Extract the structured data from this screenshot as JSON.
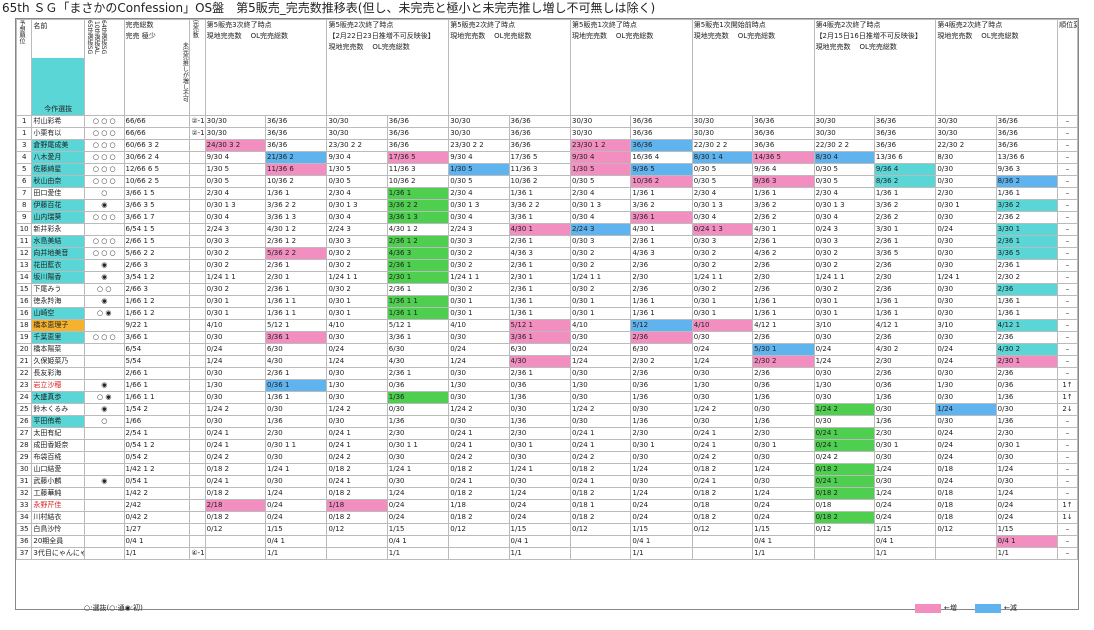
{
  "title": "65th ＳＧ「まさかのConfession」OS盤　第5販売_完売数推移表(但し、未完売と極小と未完売推し増し不可無しは除く)",
  "header": {
    "col_rank": "予想順位",
    "col_name": "名前",
    "col_flags": [
      "65th選抜SG",
      "10th選抜AL",
      "64th選抜SG"
    ],
    "total": "完売総数",
    "kanbai": "完売",
    "gokusho": "極少",
    "mikan": "未完売推しが増し不可",
    "kansoku": "完売数",
    "current_label": "今作選抜",
    "sections": [
      {
        "title": "第5販売3次終了時点",
        "sub": ""
      },
      {
        "title": "第5販売2次終了時点",
        "sub": "【2月22日23日推増不可反映後】"
      },
      {
        "title": "第5販売2次終了時点",
        "sub": ""
      },
      {
        "title": "第5販売1次終了時点",
        "sub": ""
      },
      {
        "title": "第5販売1次開始前時点",
        "sub": ""
      },
      {
        "title": "第4販売2次終了時点",
        "sub": "【2月15日16日推増不可反映後】"
      },
      {
        "title": "第4販売2次終了時点",
        "sub": ""
      }
    ],
    "sub_a": "現地完売数",
    "sub_b": "OL完売総数",
    "rank_change": "順位変動"
  },
  "rows": [
    {
      "no": "1",
      "name": "村山彩希",
      "f": "○ ○ ○",
      "t": "66/66",
      "x": "②-1",
      "s": [
        "30/30",
        "36/36",
        "30/30",
        "36/36",
        "30/30",
        "36/36",
        "30/30",
        "36/36",
        "30/30",
        "36/36",
        "30/30",
        "36/36",
        "30/30",
        "36/36"
      ],
      "ch": "–"
    },
    {
      "no": "1",
      "name": "小栗有以",
      "f": "○ ○ ○",
      "t": "66/66",
      "x": "②-1",
      "s": [
        "30/30",
        "36/36",
        "30/30",
        "36/36",
        "30/30",
        "36/36",
        "30/30",
        "36/36",
        "30/30",
        "36/36",
        "30/30",
        "36/36",
        "30/30",
        "36/36"
      ],
      "ch": "–"
    },
    {
      "no": "3",
      "name": "倉野尾成美",
      "f": "○ ○ ○",
      "t": "60/66  3  2",
      "x": "",
      "s": [
        "24/30  3  2",
        "36/36",
        "23/30  2  2",
        "36/36",
        "23/30  2  2",
        "36/36",
        "23/30  1  2",
        "36/36",
        "22/30  2  2",
        "36/36",
        "22/30  2  2",
        "36/36",
        "22/30  2",
        "36/36"
      ],
      "ch": "–"
    },
    {
      "no": "4",
      "name": "八木愛月",
      "f": "○ ○ ○",
      "t": "30/66  2  4",
      "x": "",
      "s": [
        "9/30  4",
        "21/36  2",
        "9/30  4",
        "17/36  5",
        "9/30  4",
        "17/36  5",
        "9/30  4",
        "16/36  4",
        "8/30  1  4",
        "14/36  5",
        "8/30  4",
        "13/36  6",
        "8/30",
        "13/36  6"
      ],
      "ch": "–"
    },
    {
      "no": "5",
      "name": "佐藤綺星",
      "f": "○ ○ ○",
      "t": "12/66  6  5",
      "x": "",
      "s": [
        "1/30  5",
        "11/36  6",
        "1/30  5",
        "11/36  3",
        "1/30  5",
        "11/36  3",
        "1/30  5",
        "9/36  5",
        "0/30  5",
        "9/36  4",
        "0/30  5",
        "9/36  4",
        "0/30",
        "9/36  3"
      ],
      "ch": "–"
    },
    {
      "no": "6",
      "name": "秋山由奈",
      "f": "○ ○ ○",
      "t": "10/66  2  5",
      "x": "",
      "s": [
        "0/30  5",
        "10/36  2",
        "0/30  5",
        "10/36  2",
        "0/30  5",
        "10/36  2",
        "0/30  5",
        "10/36  2",
        "0/30  5",
        "9/36  3",
        "0/30  5",
        "8/36  2",
        "0/30",
        "8/36  2"
      ],
      "ch": "–"
    },
    {
      "no": "7",
      "name": "田口愛佳",
      "f": "○",
      "t": "3/66  1  5",
      "x": "",
      "s": [
        "2/30  4",
        "1/36  1",
        "2/30  4",
        "1/36  1",
        "2/30  4",
        "1/36  1",
        "2/30  4",
        "1/36  1",
        "2/30  4",
        "1/36  1",
        "2/30  4",
        "1/36  1",
        "2/30",
        "1/36  1"
      ],
      "ch": "–"
    },
    {
      "no": "8",
      "name": "伊藤百花",
      "f": "◉",
      "t": "3/66  3  5",
      "x": "",
      "s": [
        "0/30  1  3",
        "3/36  2  2",
        "0/30  1  3",
        "3/36  2  2",
        "0/30  1  3",
        "3/36  2  2",
        "0/30  1  3",
        "3/36  2",
        "0/30  1  3",
        "3/36  2",
        "0/30  1  3",
        "3/36  2",
        "0/30  1",
        "3/36  2"
      ],
      "ch": "–"
    },
    {
      "no": "9",
      "name": "山内瑞葵",
      "f": "○ ○ ○",
      "t": "3/66  1  7",
      "x": "",
      "s": [
        "0/30  4",
        "3/36  1  3",
        "0/30  4",
        "3/36  1  3",
        "0/30  4",
        "3/36  1",
        "0/30  4",
        "3/36  1",
        "0/30  4",
        "2/36  2",
        "0/30  4",
        "2/36  2",
        "0/30",
        "2/36  2"
      ],
      "ch": "–"
    },
    {
      "no": "10",
      "name": "新井彩永",
      "f": "",
      "t": "6/54  1  5",
      "x": "",
      "s": [
        "2/24  3",
        "4/30  1  2",
        "2/24  3",
        "4/30  1  2",
        "2/24  3",
        "4/30  1",
        "2/24  3",
        "4/30  1",
        "0/24  1  3",
        "4/30  1",
        "0/24  3",
        "3/30  1",
        "0/24",
        "3/30  1"
      ],
      "ch": "–"
    },
    {
      "no": "11",
      "name": "水島美結",
      "f": "○ ○ ○",
      "t": "2/66  1  5",
      "x": "",
      "s": [
        "0/30  3",
        "2/36  1  2",
        "0/30  3",
        "2/36  1  2",
        "0/30  3",
        "2/36  1",
        "0/30  3",
        "2/36  1",
        "0/30  3",
        "2/36  1",
        "0/30  3",
        "2/36  1",
        "0/30",
        "2/36  1"
      ],
      "ch": "–"
    },
    {
      "no": "12",
      "name": "向井地美音",
      "f": "○ ○ ○",
      "t": "5/66  2  2",
      "x": "",
      "s": [
        "0/30  2",
        "5/36  2  2",
        "0/30  2",
        "4/36  3",
        "0/30  2",
        "4/36  3",
        "0/30  2",
        "4/36  3",
        "0/30  2",
        "4/36  2",
        "0/30  2",
        "3/36  5",
        "0/30",
        "3/36  5"
      ],
      "ch": "–"
    },
    {
      "no": "13",
      "name": "花田藍衣",
      "f": "◉",
      "t": "2/66  3",
      "x": "",
      "s": [
        "0/30  2",
        "2/36  1",
        "0/30  2",
        "2/36  1",
        "0/30  2",
        "2/36  1",
        "0/30  2",
        "2/36",
        "0/30  2",
        "2/36",
        "0/30  2",
        "2/36",
        "0/30",
        "2/36  1"
      ],
      "ch": "–"
    },
    {
      "no": "14",
      "name": "坂川陽香",
      "f": "◉",
      "t": "3/54  1  2",
      "x": "",
      "s": [
        "1/24  1  1",
        "2/30  1",
        "1/24  1  1",
        "2/30  1",
        "1/24  1  1",
        "2/30  1",
        "1/24  1  1",
        "2/30",
        "1/24  1  1",
        "2/30",
        "1/24  1  1",
        "2/30",
        "1/24  1",
        "2/30  2"
      ],
      "ch": "–"
    },
    {
      "no": "15",
      "name": "下尾みう",
      "f": "○ ○",
      "t": "2/66  3",
      "x": "",
      "s": [
        "0/30  2",
        "2/36  1",
        "0/30  2",
        "2/36  1",
        "0/30  2",
        "2/36  1",
        "0/30  2",
        "2/36",
        "0/30  2",
        "2/36",
        "0/30  2",
        "2/36",
        "0/30",
        "2/36"
      ],
      "ch": "–"
    },
    {
      "no": "16",
      "name": "徳永羚海",
      "f": "◉",
      "t": "1/66  1  2",
      "x": "",
      "s": [
        "0/30  1",
        "1/36  1  1",
        "0/30  1",
        "1/36  1  1",
        "0/30  1",
        "1/36  1",
        "0/30  1",
        "1/36  1",
        "0/30  1",
        "1/36  1",
        "0/30  1",
        "1/36  1",
        "0/30",
        "1/36  1"
      ],
      "ch": "–"
    },
    {
      "no": "16",
      "name": "山崎空",
      "f": "○ ◉",
      "t": "1/66  1  2",
      "x": "",
      "s": [
        "0/30  1",
        "1/36  1  1",
        "0/30  1",
        "1/36  1  1",
        "0/30  1",
        "1/36  1",
        "0/30  1",
        "1/36  1",
        "0/30  1",
        "1/36  1",
        "0/30  1",
        "1/36  1",
        "0/30",
        "1/36  1"
      ],
      "ch": "–"
    },
    {
      "no": "18",
      "name": "橋本恵理子",
      "f": "",
      "t": "9/22  1",
      "x": "",
      "s": [
        "4/10",
        "5/12  1",
        "4/10",
        "5/12  1",
        "4/10",
        "5/12  1",
        "4/10",
        "5/12",
        "4/10",
        "4/12  1",
        "3/10",
        "4/12  1",
        "3/10",
        "4/12  1"
      ],
      "ch": "–"
    },
    {
      "no": "19",
      "name": "千葉恵里",
      "f": "○ ○ ○",
      "t": "3/66  1",
      "x": "",
      "s": [
        "0/30",
        "3/36  1",
        "0/30",
        "3/36  1",
        "0/30",
        "3/36  1",
        "0/30",
        "2/36",
        "0/30",
        "2/36",
        "0/30",
        "2/36",
        "0/30",
        "2/36"
      ],
      "ch": "–"
    },
    {
      "no": "20",
      "name": "橋本陽菜",
      "f": "",
      "t": "6/54",
      "x": "",
      "s": [
        "0/24",
        "6/30",
        "0/24",
        "6/30",
        "0/24",
        "6/30",
        "0/24",
        "6/30",
        "0/24",
        "5/30  1",
        "0/24",
        "4/30  2",
        "0/24",
        "4/30  2"
      ],
      "ch": "–"
    },
    {
      "no": "21",
      "name": "久保姫菜乃",
      "f": "",
      "t": "5/54",
      "x": "",
      "s": [
        "1/24",
        "4/30",
        "1/24",
        "4/30",
        "1/24",
        "4/30",
        "1/24",
        "2/30  2",
        "1/24",
        "2/30  2",
        "1/24",
        "2/30",
        "0/24",
        "2/30  1"
      ],
      "ch": "–"
    },
    {
      "no": "22",
      "name": "長友彩海",
      "f": "",
      "t": "2/66  1",
      "x": "",
      "s": [
        "0/30",
        "2/36  1",
        "0/30",
        "2/36  1",
        "0/30",
        "2/36  1",
        "0/30",
        "2/36",
        "0/30",
        "2/36",
        "0/30",
        "2/36",
        "0/30",
        "2/36"
      ],
      "ch": "–"
    },
    {
      "no": "23",
      "name": "岩立沙穂",
      "f": "◉",
      "t": "1/66  1",
      "x": "",
      "s": [
        "1/30",
        "0/36  1",
        "1/30",
        "0/36",
        "1/30",
        "0/36",
        "1/30",
        "0/36",
        "1/30",
        "0/36",
        "1/30",
        "0/36",
        "1/30",
        "0/36"
      ],
      "ch": "1↑"
    },
    {
      "no": "24",
      "name": "大盛真歩",
      "f": "○ ◉",
      "t": "1/66  1  1",
      "x": "",
      "s": [
        "0/30",
        "1/36  1",
        "0/30",
        "1/36",
        "0/30",
        "1/36",
        "0/30",
        "1/36",
        "0/30",
        "1/36",
        "0/30",
        "1/36",
        "0/30",
        "1/36"
      ],
      "ch": "1↑"
    },
    {
      "no": "25",
      "name": "鈴木くるみ",
      "f": "◉",
      "t": "1/54  2",
      "x": "",
      "s": [
        "1/24  2",
        "0/30",
        "1/24  2",
        "0/30",
        "1/24  2",
        "0/30",
        "1/24  2",
        "0/30",
        "1/24  2",
        "0/30",
        "1/24  2",
        "0/30",
        "1/24",
        "0/30"
      ],
      "ch": "2↓"
    },
    {
      "no": "26",
      "name": "平田侑希",
      "f": "○",
      "t": "1/66",
      "x": "",
      "s": [
        "0/30",
        "1/36",
        "0/30",
        "1/36",
        "0/30",
        "1/36",
        "0/30",
        "1/36",
        "0/30",
        "1/36",
        "0/30",
        "1/36",
        "0/30",
        "1/36"
      ],
      "ch": "–"
    },
    {
      "no": "27",
      "name": "太田有紀",
      "f": "",
      "t": "2/54  1",
      "x": "",
      "s": [
        "0/24  1",
        "2/30",
        "0/24  1",
        "2/30",
        "0/24  1",
        "2/30",
        "0/24  1",
        "2/30",
        "0/24  1",
        "2/30",
        "0/24  1",
        "2/30",
        "0/24",
        "2/30"
      ],
      "ch": "–"
    },
    {
      "no": "28",
      "name": "成田香姫奈",
      "f": "",
      "t": "0/54  1  2",
      "x": "",
      "s": [
        "0/24  1",
        "0/30  1  1",
        "0/24  1",
        "0/30  1  1",
        "0/24  1",
        "0/30  1",
        "0/24  1",
        "0/30  1",
        "0/24  1",
        "0/30  1",
        "0/24  1",
        "0/30  1",
        "0/24",
        "0/30  1"
      ],
      "ch": "–"
    },
    {
      "no": "29",
      "name": "布袋百椛",
      "f": "",
      "t": "0/54  2",
      "x": "",
      "s": [
        "0/24  2",
        "0/30",
        "0/24  2",
        "0/30",
        "0/24  2",
        "0/30",
        "0/24  2",
        "0/30",
        "0/24  2",
        "0/30",
        "0/24  2",
        "0/30",
        "0/24",
        "0/30"
      ],
      "ch": "–"
    },
    {
      "no": "30",
      "name": "山口結愛",
      "f": "",
      "t": "1/42  1  2",
      "x": "",
      "s": [
        "0/18  2",
        "1/24  1",
        "0/18  2",
        "1/24  1",
        "0/18  2",
        "1/24  1",
        "0/18  2",
        "1/24",
        "0/18  2",
        "1/24",
        "0/18  2",
        "1/24",
        "0/18",
        "1/24"
      ],
      "ch": "–"
    },
    {
      "no": "31",
      "name": "武藤小麟",
      "f": "◉",
      "t": "0/54  1",
      "x": "",
      "s": [
        "0/24  1",
        "0/30",
        "0/24  1",
        "0/30",
        "0/24  1",
        "0/30",
        "0/24  1",
        "0/30",
        "0/24  1",
        "0/30",
        "0/24  1",
        "0/30",
        "0/24",
        "0/30"
      ],
      "ch": "–"
    },
    {
      "no": "32",
      "name": "工藤華純",
      "f": "",
      "t": "1/42  2",
      "x": "",
      "s": [
        "0/18  2",
        "1/24",
        "0/18  2",
        "1/24",
        "0/18  2",
        "1/24",
        "0/18  2",
        "1/24",
        "0/18  2",
        "1/24",
        "0/18  2",
        "1/24",
        "0/18",
        "1/24"
      ],
      "ch": "–"
    },
    {
      "no": "33",
      "name": "永野芹佳",
      "f": "",
      "t": "2/42",
      "x": "",
      "s": [
        "2/18",
        "0/24",
        "1/18",
        "0/24",
        "1/18",
        "0/24",
        "0/18  1",
        "0/24",
        "0/18",
        "0/24",
        "0/18",
        "0/24",
        "0/18",
        "0/24"
      ],
      "ch": "1↑"
    },
    {
      "no": "34",
      "name": "川村結衣",
      "f": "",
      "t": "0/42  2",
      "x": "",
      "s": [
        "0/18  2",
        "0/24",
        "0/18  2",
        "0/24",
        "0/18  2",
        "0/24",
        "0/18  2",
        "0/24",
        "0/18  2",
        "0/24",
        "0/18  2",
        "0/24",
        "0/18",
        "0/24"
      ],
      "ch": "1↓"
    },
    {
      "no": "35",
      "name": "白鳥沙怜",
      "f": "",
      "t": "1/27",
      "x": "",
      "s": [
        "0/12",
        "1/15",
        "0/12",
        "1/15",
        "0/12",
        "1/15",
        "0/12",
        "1/15",
        "0/12",
        "1/15",
        "0/12",
        "1/15",
        "0/12",
        "1/15"
      ],
      "ch": "–"
    },
    {
      "no": "36",
      "name": "20期全員",
      "f": "",
      "t": "0/4  1",
      "x": "",
      "s": [
        "",
        "0/4  1",
        "",
        "0/4  1",
        "",
        "0/4  1",
        "",
        "0/4  1",
        "",
        "0/4  1",
        "",
        "0/4  1",
        "",
        "0/4  1"
      ],
      "ch": "–"
    },
    {
      "no": "37",
      "name": "3代目にゃんにゃん仮面",
      "f": "",
      "t": "1/1",
      "x": "④-1",
      "s": [
        "",
        "1/1",
        "",
        "1/1",
        "",
        "1/1",
        "",
        "1/1",
        "",
        "1/1",
        "",
        "1/1",
        "",
        "1/1"
      ],
      "ch": "–"
    }
  ],
  "footer": {
    "legend_left": "○:選抜(○:通◉:初)",
    "legend_up": "←増",
    "legend_down": "←減"
  }
}
